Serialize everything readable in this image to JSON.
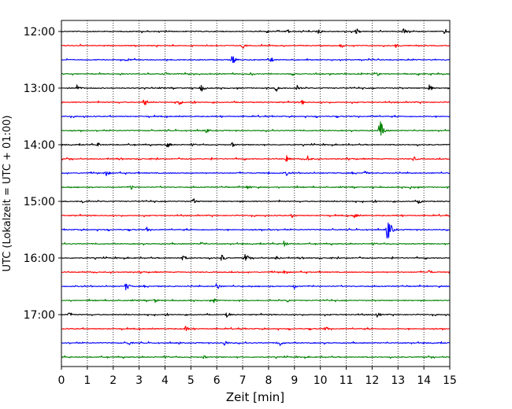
{
  "chart_data": {
    "type": "line",
    "title": "",
    "xlabel": "Zeit  [min]",
    "ylabel": "UTC (Lokalzeit = UTC + 01:00)",
    "xlim": [
      0,
      15
    ],
    "xticks": [
      0,
      1,
      2,
      3,
      4,
      5,
      6,
      7,
      8,
      9,
      10,
      11,
      12,
      13,
      14,
      15
    ],
    "x_gridlines": "dotted",
    "y_tick_labels": [
      "12:00",
      "13:00",
      "14:00",
      "15:00",
      "16:00",
      "17:00"
    ],
    "trace_interval_min": 15,
    "trace_start": "12:00",
    "trace_colors": [
      "#000000",
      "#ff0000",
      "#0000ff",
      "#008000"
    ],
    "series": [
      {
        "start": "12:00",
        "color": "#000000",
        "events": [
          {
            "t": 8.7,
            "amp": 0.25
          },
          {
            "t": 9.9,
            "amp": 0.3
          },
          {
            "t": 11.4,
            "amp": 0.28
          },
          {
            "t": 13.2,
            "amp": 0.28
          },
          {
            "t": 14.8,
            "amp": 0.25
          }
        ]
      },
      {
        "start": "12:15",
        "color": "#ff0000",
        "events": [
          {
            "t": 7.0,
            "amp": 0.25
          },
          {
            "t": 10.8,
            "amp": 0.2
          },
          {
            "t": 12.9,
            "amp": 0.2
          }
        ]
      },
      {
        "start": "12:30",
        "color": "#0000ff",
        "events": [
          {
            "t": 6.6,
            "amp": 0.4
          },
          {
            "t": 8.1,
            "amp": 0.2
          }
        ]
      },
      {
        "start": "12:45",
        "color": "#008000",
        "events": [
          {
            "t": 4.0,
            "amp": 0.2
          },
          {
            "t": 12.2,
            "amp": 0.15
          }
        ]
      },
      {
        "start": "13:00",
        "color": "#000000",
        "events": [
          {
            "t": 0.6,
            "amp": 0.3
          },
          {
            "t": 5.4,
            "amp": 0.3
          },
          {
            "t": 8.3,
            "amp": 0.3
          },
          {
            "t": 9.1,
            "amp": 0.3
          },
          {
            "t": 14.2,
            "amp": 0.3
          }
        ]
      },
      {
        "start": "13:15",
        "color": "#ff0000",
        "events": [
          {
            "t": 3.2,
            "amp": 0.35
          },
          {
            "t": 4.5,
            "amp": 0.3
          },
          {
            "t": 9.3,
            "amp": 0.2
          }
        ]
      },
      {
        "start": "13:30",
        "color": "#0000ff",
        "events": [
          {
            "t": 12.0,
            "amp": 0.15
          }
        ]
      },
      {
        "start": "13:45",
        "color": "#008000",
        "events": [
          {
            "t": 5.6,
            "amp": 0.2
          },
          {
            "t": 12.3,
            "amp": 0.9
          }
        ]
      },
      {
        "start": "14:00",
        "color": "#000000",
        "events": [
          {
            "t": 1.4,
            "amp": 0.2
          },
          {
            "t": 4.1,
            "amp": 0.25
          },
          {
            "t": 6.6,
            "amp": 0.2
          }
        ]
      },
      {
        "start": "14:15",
        "color": "#ff0000",
        "events": [
          {
            "t": 8.7,
            "amp": 0.35
          },
          {
            "t": 9.5,
            "amp": 0.3
          },
          {
            "t": 13.6,
            "amp": 0.2
          }
        ]
      },
      {
        "start": "14:30",
        "color": "#0000ff",
        "events": [
          {
            "t": 1.7,
            "amp": 0.3
          },
          {
            "t": 8.7,
            "amp": 0.2
          },
          {
            "t": 11.7,
            "amp": 0.2
          }
        ]
      },
      {
        "start": "14:45",
        "color": "#008000",
        "events": [
          {
            "t": 2.7,
            "amp": 0.2
          },
          {
            "t": 7.2,
            "amp": 0.2
          },
          {
            "t": 13.5,
            "amp": 0.2
          }
        ]
      },
      {
        "start": "15:00",
        "color": "#000000",
        "events": [
          {
            "t": 0.8,
            "amp": 0.2
          },
          {
            "t": 5.1,
            "amp": 0.25
          },
          {
            "t": 13.8,
            "amp": 0.2
          }
        ]
      },
      {
        "start": "15:15",
        "color": "#ff0000",
        "events": [
          {
            "t": 8.9,
            "amp": 0.2
          },
          {
            "t": 11.3,
            "amp": 0.25
          }
        ]
      },
      {
        "start": "15:30",
        "color": "#0000ff",
        "events": [
          {
            "t": 3.3,
            "amp": 0.2
          },
          {
            "t": 8.0,
            "amp": 0.2
          },
          {
            "t": 12.6,
            "amp": 1.0
          }
        ]
      },
      {
        "start": "15:45",
        "color": "#008000",
        "events": [
          {
            "t": 5.4,
            "amp": 0.2
          },
          {
            "t": 8.6,
            "amp": 0.25
          }
        ]
      },
      {
        "start": "16:00",
        "color": "#000000",
        "events": [
          {
            "t": 4.7,
            "amp": 0.25
          },
          {
            "t": 6.2,
            "amp": 0.3
          },
          {
            "t": 7.1,
            "amp": 0.35
          },
          {
            "t": 8.3,
            "amp": 0.2
          }
        ]
      },
      {
        "start": "16:15",
        "color": "#ff0000",
        "events": [
          {
            "t": 8.6,
            "amp": 0.25
          },
          {
            "t": 14.2,
            "amp": 0.2
          }
        ]
      },
      {
        "start": "16:30",
        "color": "#0000ff",
        "events": [
          {
            "t": 2.5,
            "amp": 0.35
          },
          {
            "t": 6.0,
            "amp": 0.3
          },
          {
            "t": 9.0,
            "amp": 0.2
          }
        ]
      },
      {
        "start": "16:45",
        "color": "#008000",
        "events": [
          {
            "t": 3.6,
            "amp": 0.2
          },
          {
            "t": 5.9,
            "amp": 0.2
          },
          {
            "t": 8.7,
            "amp": 0.2
          }
        ]
      },
      {
        "start": "17:00",
        "color": "#000000",
        "events": [
          {
            "t": 0.3,
            "amp": 0.25
          },
          {
            "t": 6.4,
            "amp": 0.25
          },
          {
            "t": 12.2,
            "amp": 0.25
          }
        ]
      },
      {
        "start": "17:15",
        "color": "#ff0000",
        "events": [
          {
            "t": 4.8,
            "amp": 0.2
          },
          {
            "t": 10.2,
            "amp": 0.2
          }
        ]
      },
      {
        "start": "17:30",
        "color": "#0000ff",
        "events": [
          {
            "t": 2.6,
            "amp": 0.2
          },
          {
            "t": 6.3,
            "amp": 0.25
          },
          {
            "t": 8.4,
            "amp": 0.35
          }
        ]
      },
      {
        "start": "17:45",
        "color": "#008000",
        "events": [
          {
            "t": 5.5,
            "amp": 0.15
          }
        ]
      }
    ]
  }
}
